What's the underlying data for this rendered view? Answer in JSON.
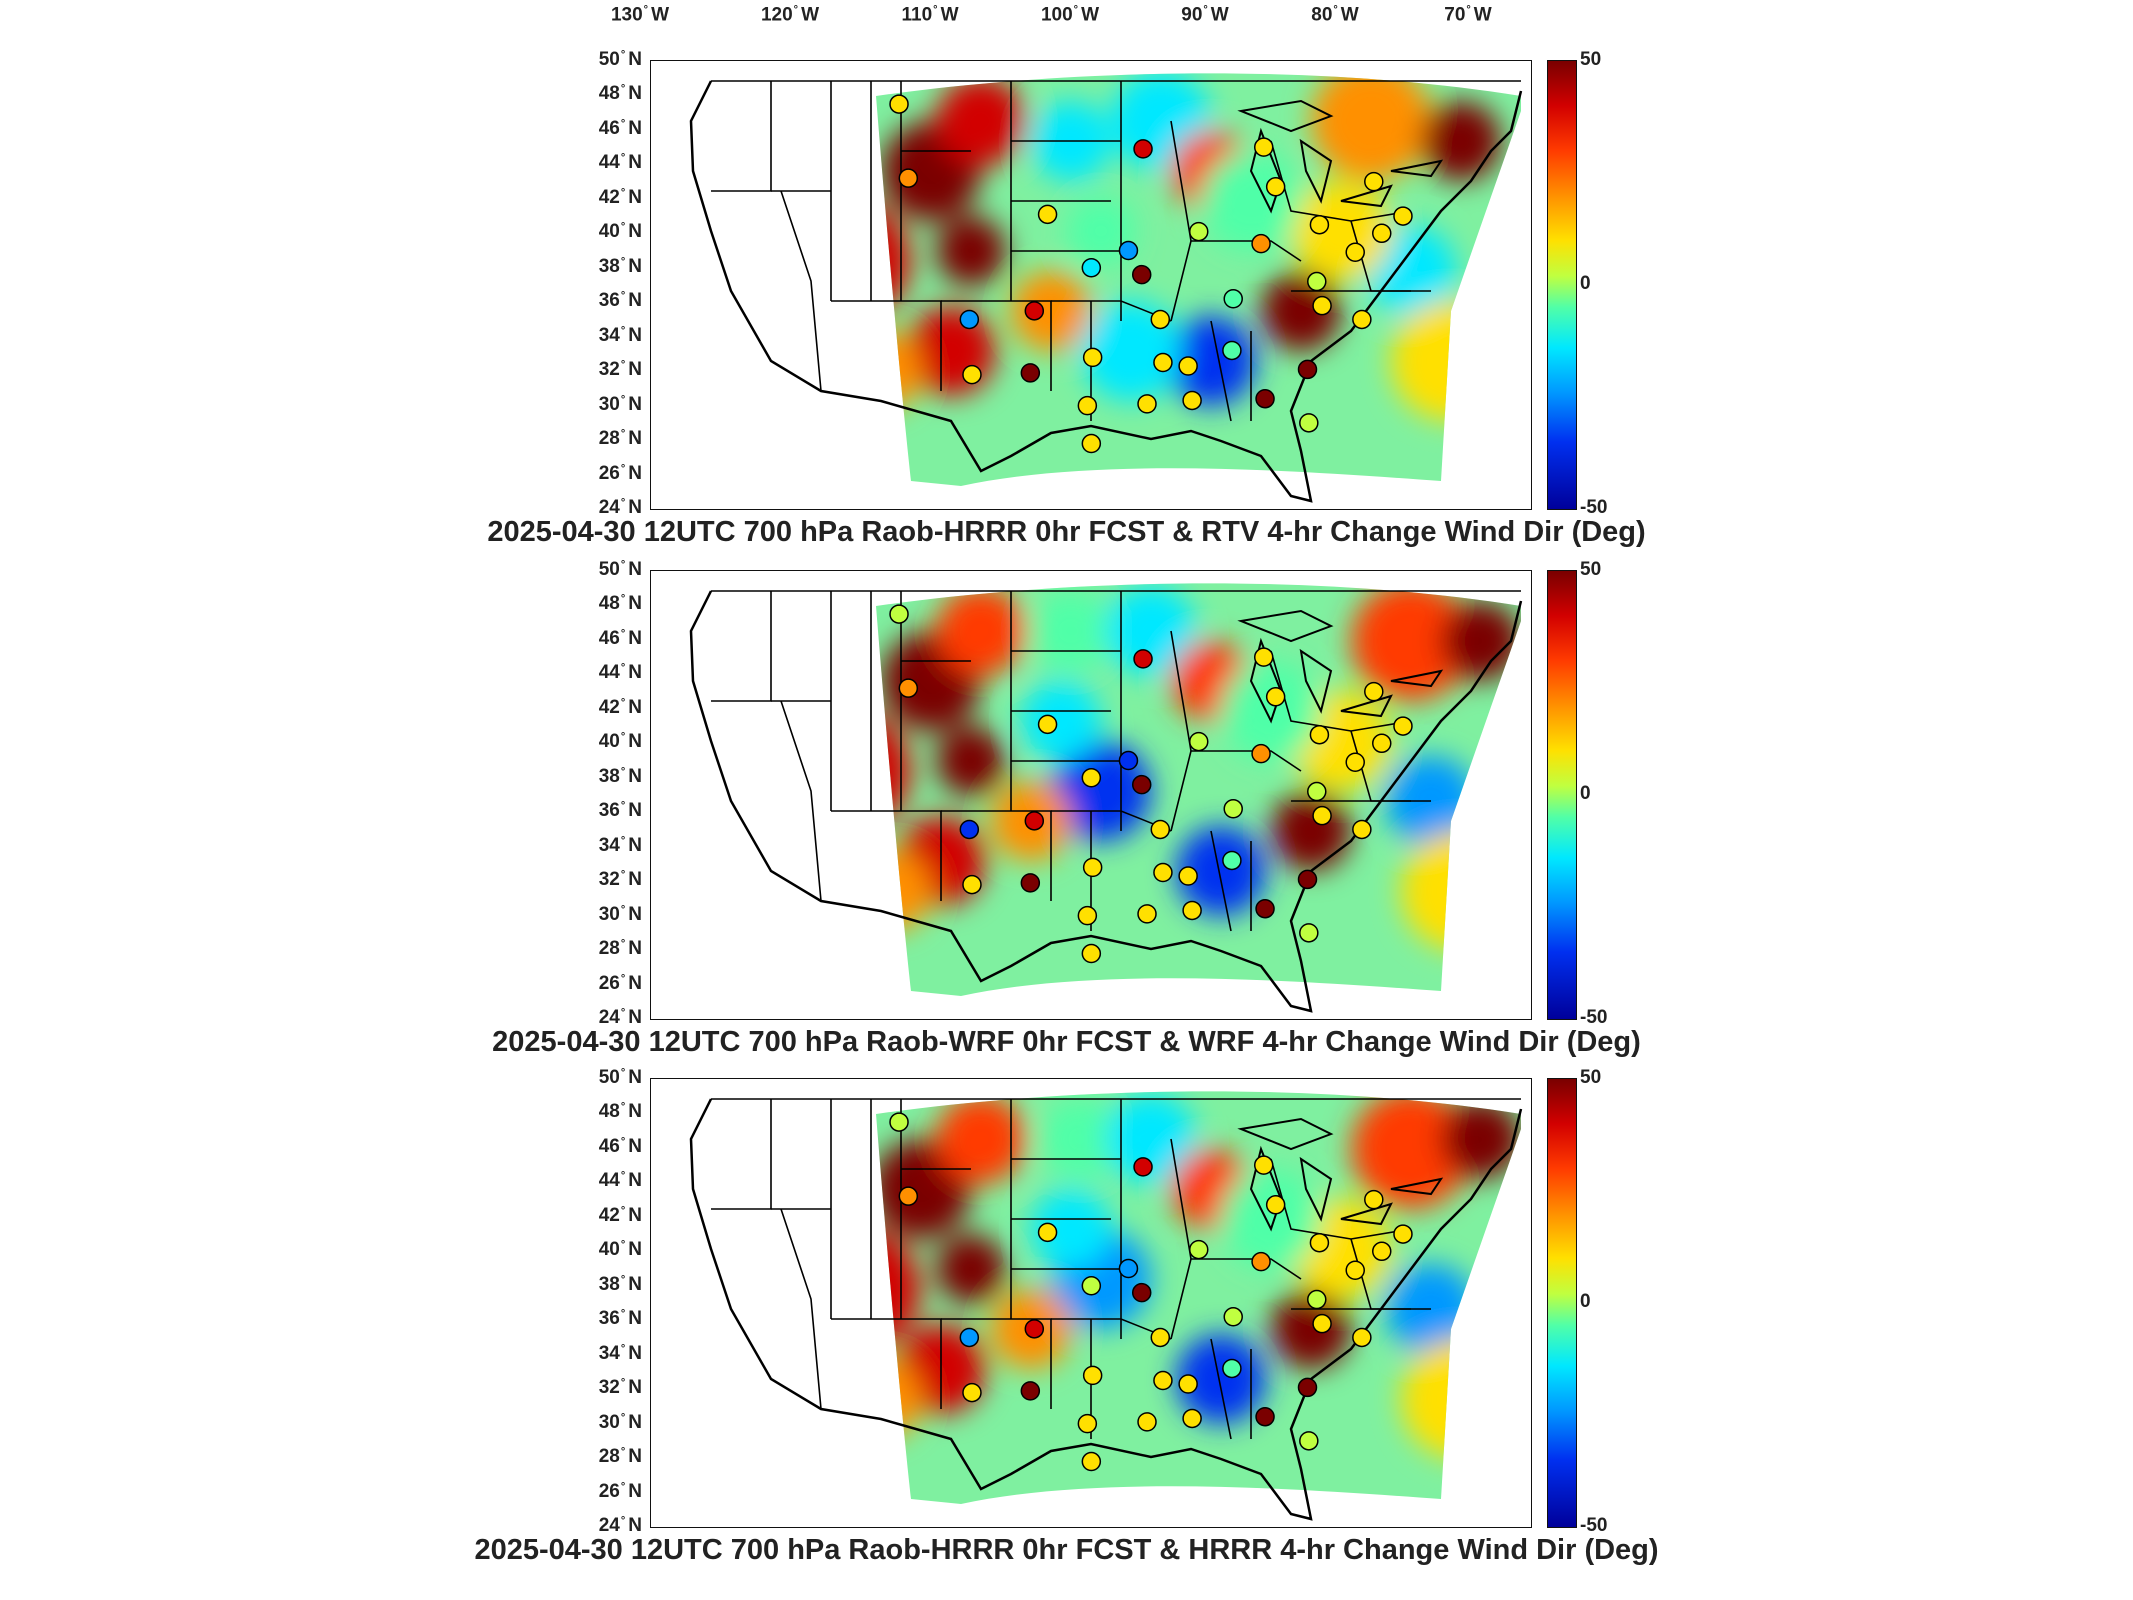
{
  "longitude_labels": [
    "130",
    "120",
    "110",
    "100",
    "90",
    "80",
    "70"
  ],
  "longitude_hemisphere": "W",
  "latitude_labels": [
    "50",
    "48",
    "46",
    "44",
    "42",
    "40",
    "38",
    "36",
    "34",
    "32",
    "30",
    "28",
    "26",
    "24"
  ],
  "latitude_hemisphere": "N",
  "degree_symbol": "°",
  "panels": [
    {
      "caption": "2025-04-30 12UTC 700 hPa Raob-HRRR 0hr FCST & RTV 4-hr Change Wind Dir (Deg)",
      "colorbar": {
        "max": "50",
        "mid": "0",
        "min": "-50"
      }
    },
    {
      "caption": "2025-04-30 12UTC 700 hPa Raob-WRF 0hr FCST & WRF 4-hr Change Wind Dir (Deg)",
      "colorbar": {
        "max": "50",
        "mid": "0",
        "min": "-50"
      }
    },
    {
      "caption": "2025-04-30 12UTC 700 hPa Raob-HRRR 0hr FCST & HRRR 4-hr Change Wind Dir (Deg)",
      "colorbar": {
        "max": "50",
        "mid": "0",
        "min": "-50"
      }
    }
  ],
  "colormap": [
    "#00009a",
    "#0030f0",
    "#0098ff",
    "#00e8ff",
    "#50ffa8",
    "#c0ff40",
    "#ffe000",
    "#ff9000",
    "#ff3b00",
    "#d20000",
    "#7a0000"
  ],
  "stations": [
    {
      "lon": -111.9,
      "lat": 47.5,
      "value": [
        5,
        0,
        0
      ]
    },
    {
      "lon": -111.2,
      "lat": 43.2,
      "value": [
        20,
        15,
        15
      ]
    },
    {
      "lon": -100.7,
      "lat": 41.1,
      "value": [
        8,
        5,
        5
      ]
    },
    {
      "lon": -97.4,
      "lat": 38.0,
      "value": [
        -20,
        5,
        0
      ]
    },
    {
      "lon": -94.6,
      "lat": 39.0,
      "value": [
        -35,
        -40,
        -30
      ]
    },
    {
      "lon": -93.6,
      "lat": 37.6,
      "value": [
        45,
        45,
        45
      ]
    },
    {
      "lon": -93.5,
      "lat": 44.9,
      "value": [
        40,
        40,
        40
      ]
    },
    {
      "lon": -101.7,
      "lat": 35.5,
      "value": [
        40,
        40,
        40
      ]
    },
    {
      "lon": -106.6,
      "lat": 35.0,
      "value": [
        -30,
        -40,
        -30
      ]
    },
    {
      "lon": -102.0,
      "lat": 31.9,
      "value": [
        45,
        45,
        45
      ]
    },
    {
      "lon": -106.4,
      "lat": 31.8,
      "value": [
        5,
        5,
        5
      ]
    },
    {
      "lon": -97.3,
      "lat": 32.8,
      "value": [
        10,
        10,
        10
      ]
    },
    {
      "lon": -92.2,
      "lat": 35.0,
      "value": [
        5,
        5,
        5
      ]
    },
    {
      "lon": -92.0,
      "lat": 32.5,
      "value": [
        10,
        10,
        10
      ]
    },
    {
      "lon": -90.1,
      "lat": 32.3,
      "value": [
        5,
        5,
        5
      ]
    },
    {
      "lon": -86.8,
      "lat": 33.2,
      "value": [
        -15,
        -15,
        -15
      ]
    },
    {
      "lon": -86.7,
      "lat": 36.2,
      "value": [
        -10,
        -5,
        -5
      ]
    },
    {
      "lon": -89.3,
      "lat": 40.1,
      "value": [
        -5,
        -5,
        -5
      ]
    },
    {
      "lon": -84.6,
      "lat": 39.4,
      "value": [
        15,
        15,
        15
      ]
    },
    {
      "lon": -84.4,
      "lat": 45.0,
      "value": [
        5,
        5,
        5
      ]
    },
    {
      "lon": -83.5,
      "lat": 42.7,
      "value": [
        10,
        10,
        10
      ]
    },
    {
      "lon": -80.2,
      "lat": 40.5,
      "value": [
        10,
        10,
        10
      ]
    },
    {
      "lon": -80.4,
      "lat": 37.2,
      "value": [
        0,
        0,
        0
      ]
    },
    {
      "lon": -80.0,
      "lat": 35.8,
      "value": [
        5,
        5,
        5
      ]
    },
    {
      "lon": -77.0,
      "lat": 35.0,
      "value": [
        5,
        5,
        5
      ]
    },
    {
      "lon": -77.5,
      "lat": 38.9,
      "value": [
        5,
        5,
        5
      ]
    },
    {
      "lon": -75.5,
      "lat": 40.0,
      "value": [
        5,
        5,
        5
      ]
    },
    {
      "lon": -76.1,
      "lat": 43.0,
      "value": [
        10,
        10,
        10
      ]
    },
    {
      "lon": -73.9,
      "lat": 41.0,
      "value": [
        5,
        5,
        5
      ]
    },
    {
      "lon": -81.1,
      "lat": 32.1,
      "value": [
        45,
        45,
        45
      ]
    },
    {
      "lon": -84.3,
      "lat": 30.4,
      "value": [
        45,
        45,
        45
      ]
    },
    {
      "lon": -81.0,
      "lat": 29.0,
      "value": [
        0,
        0,
        0
      ]
    },
    {
      "lon": -97.4,
      "lat": 27.8,
      "value": [
        5,
        5,
        5
      ]
    },
    {
      "lon": -97.7,
      "lat": 30.0,
      "value": [
        5,
        5,
        5
      ]
    },
    {
      "lon": -89.8,
      "lat": 30.3,
      "value": [
        10,
        10,
        10
      ]
    },
    {
      "lon": -93.2,
      "lat": 30.1,
      "value": [
        5,
        5,
        5
      ]
    }
  ]
}
